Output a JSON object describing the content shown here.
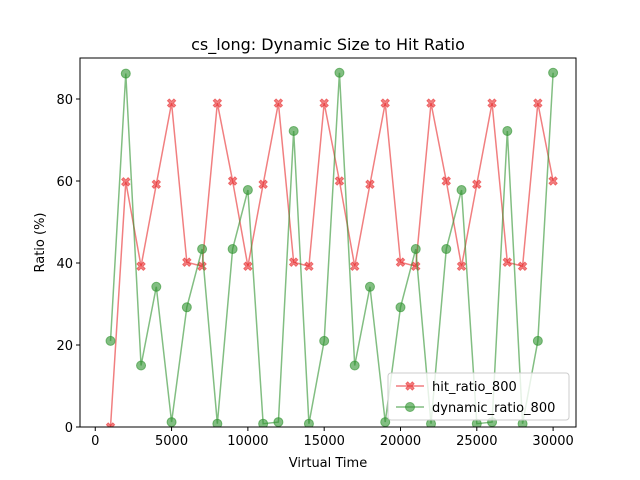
{
  "chart_data": {
    "type": "line",
    "title": "cs_long: Dynamic Size to Hit Ratio",
    "xlabel": "Virtual Time",
    "ylabel": "Ratio (%)",
    "xlim": [
      -1000,
      31500
    ],
    "ylim": [
      0,
      90
    ],
    "xticks": [
      0,
      5000,
      10000,
      15000,
      20000,
      25000,
      30000
    ],
    "yticks": [
      0,
      20,
      40,
      60,
      80
    ],
    "grid": false,
    "legend_position": "lower right",
    "x": [
      1000,
      2000,
      3000,
      4000,
      5000,
      6000,
      7000,
      8000,
      9000,
      10000,
      11000,
      12000,
      13000,
      14000,
      15000,
      16000,
      17000,
      18000,
      19000,
      20000,
      21000,
      22000,
      23000,
      24000,
      25000,
      26000,
      27000,
      28000,
      29000,
      30000
    ],
    "series": [
      {
        "name": "hit_ratio_800",
        "color": "#e8292b",
        "marker": "x-filled",
        "values": [
          0,
          59.8,
          39.2,
          59.2,
          79,
          40.2,
          39.2,
          79,
          60,
          39.2,
          59.2,
          79,
          40.2,
          39.2,
          79,
          60,
          39.2,
          59.2,
          79,
          40.2,
          39.2,
          79,
          60,
          39.2,
          59.2,
          79,
          40.2,
          39.2,
          79,
          60
        ]
      },
      {
        "name": "dynamic_ratio_800",
        "color": "#2e922e",
        "marker": "circle",
        "values": [
          21,
          86.2,
          15,
          34.2,
          1.2,
          29.2,
          43.4,
          0.8,
          43.4,
          57.8,
          0.8,
          1.2,
          72.2,
          0.8,
          21,
          86.4,
          15,
          34.2,
          1.2,
          29.2,
          43.4,
          0.8,
          43.4,
          57.8,
          0.8,
          1.2,
          72.2,
          0.8,
          21,
          86.4
        ]
      }
    ]
  }
}
